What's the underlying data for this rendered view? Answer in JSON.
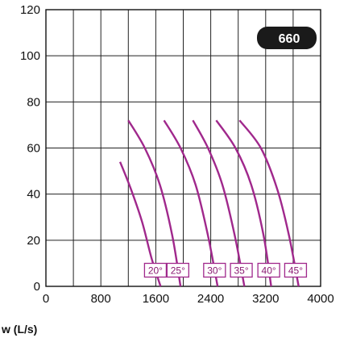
{
  "chart_data": {
    "type": "line",
    "title": "",
    "xlabel": "w (L/s)",
    "ylabel": "",
    "xlim": [
      0,
      4000
    ],
    "ylim": [
      0,
      120
    ],
    "xticks": [
      0,
      800,
      1600,
      2400,
      3200,
      4000
    ],
    "yticks": [
      0,
      20,
      40,
      60,
      80,
      100,
      120
    ],
    "x_gridlines": [
      0,
      400,
      800,
      1200,
      1600,
      2000,
      2400,
      2800,
      3200,
      3600,
      4000
    ],
    "y_gridlines": [
      0,
      20,
      40,
      60,
      80,
      100,
      120
    ],
    "grid": true,
    "badge": "660",
    "badge_color": "#1a1a1a",
    "line_color": "#a0288c",
    "series": [
      {
        "name": "20°",
        "x": [
          1080,
          1240,
          1400,
          1540,
          1670
        ],
        "y": [
          54,
          42,
          28,
          12,
          0
        ]
      },
      {
        "name": "25°",
        "x": [
          1200,
          1440,
          1660,
          1840,
          1960
        ],
        "y": [
          72,
          60,
          44,
          22,
          0
        ]
      },
      {
        "name": "30°",
        "x": [
          1720,
          1960,
          2180,
          2360,
          2500
        ],
        "y": [
          72,
          60,
          44,
          22,
          0
        ]
      },
      {
        "name": "35°",
        "x": [
          2140,
          2360,
          2570,
          2750,
          2890
        ],
        "y": [
          72,
          60,
          44,
          22,
          0
        ]
      },
      {
        "name": "40°",
        "x": [
          2480,
          2760,
          2990,
          3170,
          3280
        ],
        "y": [
          72,
          60,
          44,
          22,
          0
        ]
      },
      {
        "name": "45°",
        "x": [
          2820,
          3130,
          3370,
          3540,
          3680
        ],
        "y": [
          72,
          60,
          42,
          22,
          0
        ]
      }
    ]
  }
}
